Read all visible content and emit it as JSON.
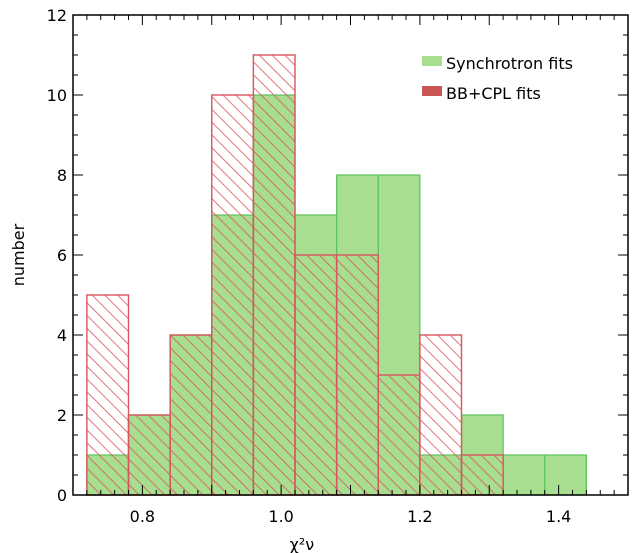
{
  "chart_data": {
    "type": "histogram",
    "xlabel": "χ²ν",
    "ylabel": "number",
    "xlim": [
      0.7,
      1.5
    ],
    "ylim": [
      0,
      12
    ],
    "xticks": [
      "0.8",
      "1.0",
      "1.2",
      "1.4"
    ],
    "xtick_values": [
      0.8,
      1.0,
      1.2,
      1.4
    ],
    "yticks": [
      "0",
      "2",
      "4",
      "6",
      "8",
      "10",
      "12"
    ],
    "ytick_values": [
      0,
      2,
      4,
      6,
      8,
      10,
      12
    ],
    "bin_edges": [
      0.72,
      0.78,
      0.84,
      0.9,
      0.96,
      1.02,
      1.08,
      1.14,
      1.2,
      1.26,
      1.32,
      1.38,
      1.44
    ],
    "series": [
      {
        "name": "Synchrotron fits",
        "style": "solid",
        "fill": "#a7de8f",
        "edge": "#5cc25c",
        "values": [
          1,
          2,
          4,
          7,
          10,
          7,
          8,
          8,
          1,
          2,
          1,
          1
        ]
      },
      {
        "name": "BB+CPL fits",
        "style": "hatched",
        "fill": "#cc5555",
        "edge": "#d9545e",
        "values": [
          5,
          2,
          4,
          10,
          11,
          6,
          6,
          3,
          4,
          1,
          0,
          0
        ]
      }
    ],
    "legend": "top-right",
    "grid": false
  }
}
